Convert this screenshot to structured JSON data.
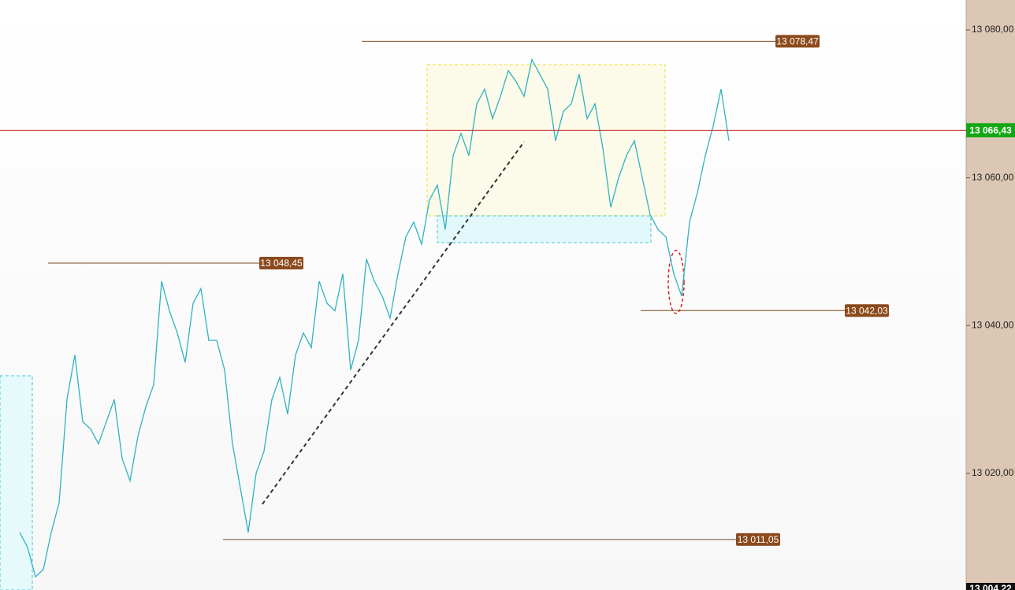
{
  "chart_data": {
    "type": "line",
    "series": [
      {
        "color": "#2fb3c2",
        "values": [
          13012,
          13010,
          13006,
          13007,
          13012,
          13016,
          13030,
          13036,
          13027,
          13026,
          13024,
          13027,
          13030,
          13022,
          13019,
          13025,
          13029,
          13032,
          13046,
          13042,
          13039,
          13035,
          13043,
          13045,
          13038,
          13038,
          13034,
          13024,
          13018,
          13012,
          13020,
          13023,
          13030,
          13033,
          13028,
          13036,
          13039,
          13037,
          13046,
          13043,
          13042,
          13047,
          13034,
          13038,
          13049,
          13046,
          13044,
          13041,
          13047,
          13052,
          13054,
          13051,
          13057,
          13059,
          13053,
          13063,
          13066,
          13063,
          13070,
          13072,
          13068,
          13071,
          13074.5,
          13073,
          13071,
          13076,
          13074,
          13072,
          13065,
          13069,
          13070,
          13074,
          13068,
          13070,
          13064,
          13056,
          13060,
          13063,
          13065,
          13060,
          13055,
          13053,
          13052,
          13047,
          13044,
          13054,
          13058,
          13063,
          13067,
          13072,
          13065
        ]
      }
    ],
    "ylim": [
      13004.22,
      13084.05
    ],
    "yticks": [
      {
        "value": 13020,
        "label": "13 020,00"
      },
      {
        "value": 13040,
        "label": "13 040,00"
      },
      {
        "value": 13060,
        "label": "13 060,00"
      },
      {
        "value": 13080,
        "label": "13 080,00"
      }
    ],
    "levels": [
      {
        "value": 13078.47,
        "label": "13 078,47"
      },
      {
        "value": 13048.45,
        "label": "13 048,45"
      },
      {
        "value": 13042.03,
        "label": "13 042,03"
      },
      {
        "value": 13011.05,
        "label": "13 011,05"
      }
    ],
    "current_price": {
      "value": 13066.43,
      "label": "13 066,43"
    },
    "bottom_price": {
      "value": 13004.22,
      "label": "13 004,22"
    }
  }
}
